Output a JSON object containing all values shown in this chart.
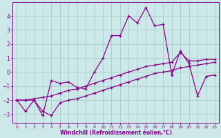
{
  "xlabel": "Windchill (Refroidissement éolien,°C)",
  "bg_color": "#cce8e8",
  "line_color": "#880088",
  "grid_color": "#aacccc",
  "xlim": [
    -0.5,
    23.5
  ],
  "ylim": [
    -3.6,
    5.0
  ],
  "yticks": [
    -3,
    -2,
    -1,
    0,
    1,
    2,
    3,
    4
  ],
  "xticks": [
    0,
    1,
    2,
    3,
    4,
    5,
    6,
    7,
    8,
    9,
    10,
    11,
    12,
    13,
    14,
    15,
    16,
    17,
    18,
    19,
    20,
    21,
    22,
    23
  ],
  "series1_x": [
    0,
    1,
    2,
    3,
    4,
    5,
    6,
    7,
    8,
    9,
    10,
    11,
    12,
    13,
    14,
    15,
    16,
    17,
    18,
    19,
    20,
    21,
    22,
    23
  ],
  "series1_y": [
    -2.0,
    -2.8,
    -2.0,
    -3.1,
    -0.6,
    -0.8,
    -0.7,
    -1.1,
    -1.2,
    0.0,
    1.0,
    2.6,
    2.6,
    4.0,
    3.5,
    4.6,
    3.3,
    3.4,
    -0.2,
    1.5,
    0.6,
    -1.7,
    -0.3,
    -0.2
  ],
  "series2_x": [
    0,
    1,
    2,
    3,
    4,
    5,
    6,
    7,
    8,
    9,
    10,
    11,
    12,
    13,
    14,
    15,
    16,
    17,
    18,
    19,
    20,
    21,
    22,
    23
  ],
  "series2_y": [
    -2.0,
    -2.0,
    -1.9,
    -1.8,
    -1.7,
    -1.5,
    -1.3,
    -1.2,
    -1.0,
    -0.8,
    -0.6,
    -0.4,
    -0.2,
    0.0,
    0.2,
    0.4,
    0.5,
    0.6,
    0.7,
    1.4,
    0.8,
    0.8,
    0.9,
    0.9
  ],
  "series3_x": [
    0,
    1,
    2,
    3,
    4,
    5,
    6,
    7,
    8,
    9,
    10,
    11,
    12,
    13,
    14,
    15,
    16,
    17,
    18,
    19,
    20,
    21,
    22,
    23
  ],
  "series3_y": [
    -2.0,
    -2.0,
    -2.0,
    -2.8,
    -3.1,
    -2.2,
    -2.0,
    -1.9,
    -1.7,
    -1.5,
    -1.3,
    -1.1,
    -0.9,
    -0.7,
    -0.5,
    -0.3,
    -0.1,
    0.0,
    0.1,
    0.3,
    0.4,
    0.5,
    0.6,
    0.7
  ]
}
